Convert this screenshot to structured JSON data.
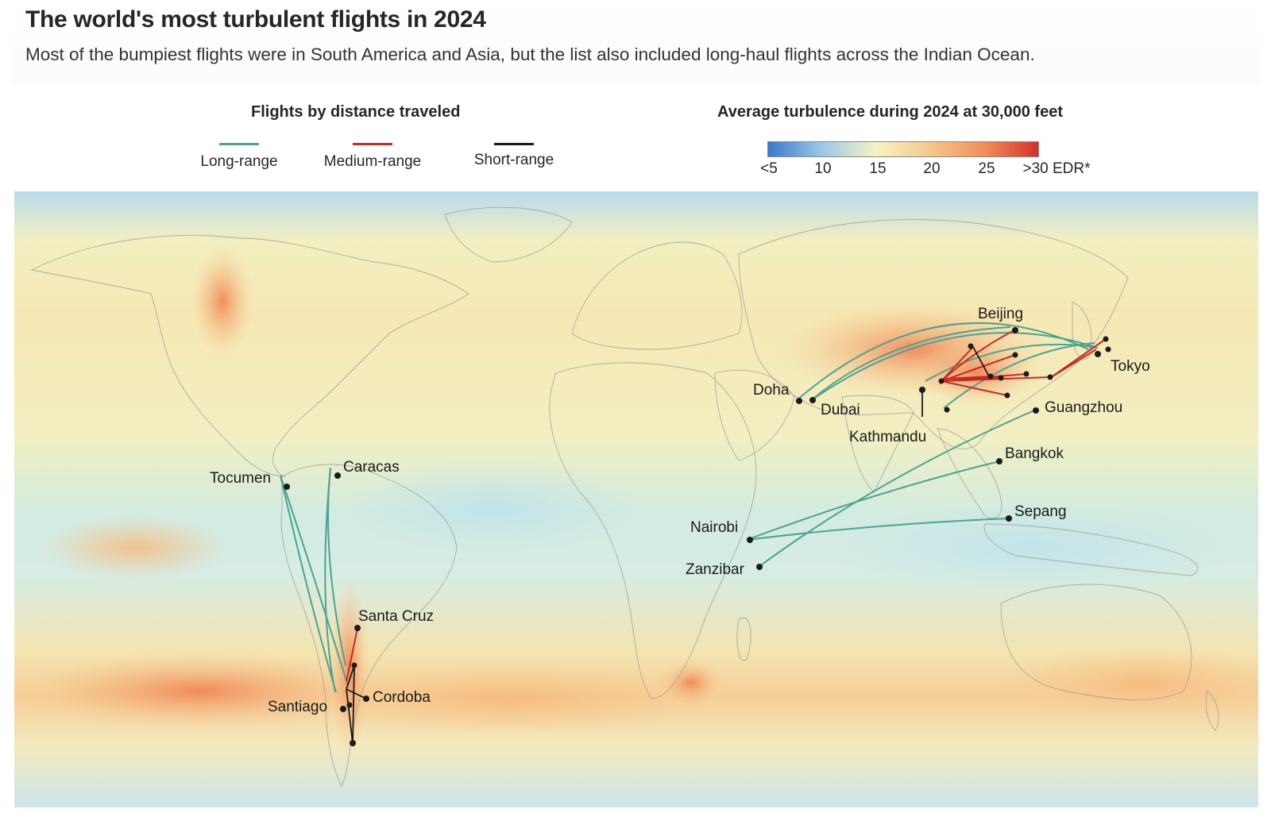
{
  "header": {
    "title": "The world's most turbulent flights in 2024",
    "subtitle": "Most of the bumpiest flights were in South America and Asia, but the list also included long-haul flights across the Indian Ocean."
  },
  "legend": {
    "flights_title": "Flights by distance traveled",
    "items": [
      {
        "label": "Long-range",
        "color": "#4aa394"
      },
      {
        "label": "Medium-range",
        "color": "#c42b23"
      },
      {
        "label": "Short-range",
        "color": "#1a1a1a"
      }
    ],
    "turbulence_title": "Average turbulence during 2024 at 30,000 feet",
    "scale_ticks": [
      "<5",
      "10",
      "15",
      "20",
      "25",
      ">30 EDR*"
    ],
    "scale_colors": [
      "#3a78c9",
      "#9cc9e6",
      "#f5f3c4",
      "#f7c78b",
      "#ef8f5a",
      "#d62f2a"
    ]
  },
  "map": {
    "ocean_color": "#cfe8e6",
    "cities": [
      {
        "name": "Tocumen"
      },
      {
        "name": "Caracas"
      },
      {
        "name": "Santa Cruz"
      },
      {
        "name": "Cordoba"
      },
      {
        "name": "Santiago"
      },
      {
        "name": "Doha"
      },
      {
        "name": "Dubai"
      },
      {
        "name": "Kathmandu"
      },
      {
        "name": "Beijing"
      },
      {
        "name": "Tokyo"
      },
      {
        "name": "Guangzhou"
      },
      {
        "name": "Bangkok"
      },
      {
        "name": "Sepang"
      },
      {
        "name": "Nairobi"
      },
      {
        "name": "Zanzibar"
      }
    ]
  }
}
